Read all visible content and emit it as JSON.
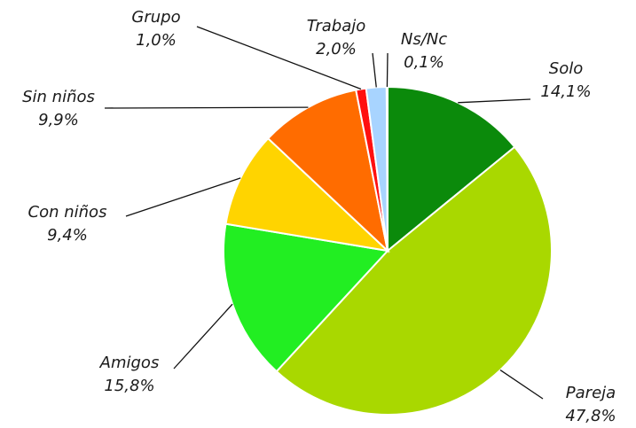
{
  "chart_data": {
    "type": "pie",
    "categories": [
      "Solo",
      "Pareja",
      "Amigos",
      "Con niños",
      "Sin niños",
      "Grupo",
      "Trabajo",
      "Ns/Nc"
    ],
    "values": [
      14.1,
      47.8,
      15.8,
      9.4,
      9.9,
      1.0,
      2.0,
      0.1
    ],
    "value_labels": [
      "14,1%",
      "47,8%",
      "15,8%",
      "9,4%",
      "9,9%",
      "1,0%",
      "2,0%",
      "0,1%"
    ],
    "colors": [
      "#0b8a0b",
      "#a9d800",
      "#22ee22",
      "#ffd400",
      "#ff6c00",
      "#ff1010",
      "#a8d4ff",
      "#e4eef8"
    ]
  }
}
